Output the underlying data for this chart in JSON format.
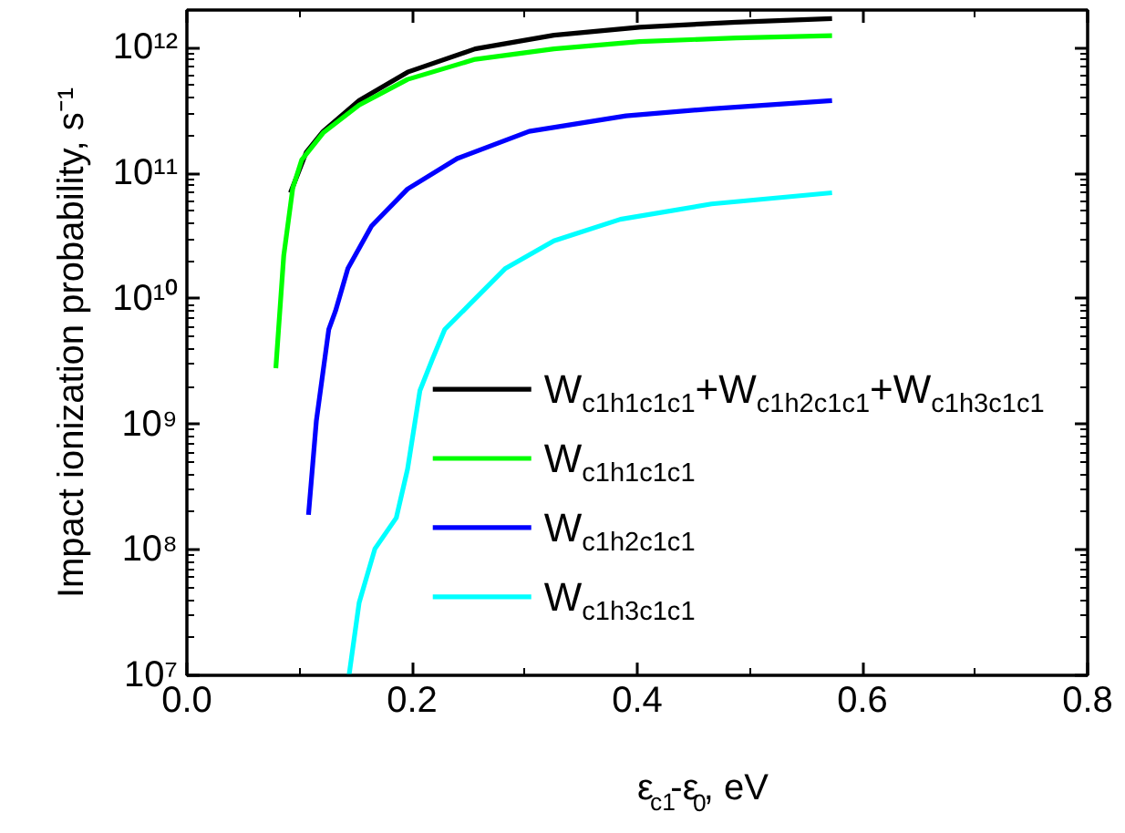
{
  "chart_data": {
    "type": "line",
    "xlabel": "ε$_{c1}$-ε$_{0}$, eV",
    "ylabel": "Impact ionization probability, s⁻¹",
    "log": "y",
    "grid": false,
    "legend": "bottom right",
    "line_style": "solid",
    "xlim": [
      0,
      0.8
    ],
    "xticks": [
      {
        "value": 0,
        "label": "0.0"
      },
      0.2,
      0.4,
      0.6,
      0.8
    ],
    "ylim": [
      10000000.0,
      2000000000000.0
    ],
    "yticks": [
      {
        "value": 10000000.0,
        "label": "10⁷"
      },
      {
        "value": 100000000.0,
        "label": "10⁸"
      },
      {
        "value": 1000000000.0,
        "label": "10⁹"
      },
      {
        "value": 10000000000.0,
        "label": "10¹⁰"
      },
      {
        "value": 100000000000.0,
        "label": "10¹¹"
      },
      {
        "value": 1000000000000.0,
        "label": "10¹²"
      }
    ],
    "series": [
      {
        "name": "W$_{c1h1c1c1}$+W$_{c1h2c1c1}$+W$_{c1h3c1c1}$",
        "color": "#000000",
        "x": [
          0.092,
          0.106,
          0.121,
          0.153,
          0.196,
          0.256,
          0.326,
          0.402,
          0.488,
          0.573
        ],
        "values": [
          70000000000.0,
          147000000000.0,
          216000000000.0,
          380000000000.0,
          640000000000.0,
          980000000000.0,
          1260000000000.0,
          1460000000000.0,
          1600000000000.0,
          1710000000000.0
        ]
      },
      {
        "name": "W$_{c1h1c1c1}$",
        "color": "#00ff00",
        "x": [
          0.079,
          0.086,
          0.094,
          0.102,
          0.121,
          0.153,
          0.196,
          0.256,
          0.326,
          0.402,
          0.488,
          0.573
        ],
        "values": [
          2800000000.0,
          22000000000.0,
          76000000000.0,
          128000000000.0,
          210000000000.0,
          350000000000.0,
          560000000000.0,
          810000000000.0,
          980000000000.0,
          1120000000000.0,
          1200000000000.0,
          1250000000000.0
        ]
      },
      {
        "name": "W$_{c1h2c1c1}$",
        "color": "#0000ff",
        "x": [
          0.108,
          0.115,
          0.126,
          0.132,
          0.143,
          0.164,
          0.196,
          0.24,
          0.304,
          0.39,
          0.466,
          0.573
        ],
        "values": [
          190000000.0,
          1070000000.0,
          5700000000.0,
          8000000000.0,
          17500000000.0,
          38000000000.0,
          75000000000.0,
          131000000000.0,
          216000000000.0,
          287000000000.0,
          327000000000.0,
          380000000000.0
        ]
      },
      {
        "name": "W$_{c1h3c1c1}$",
        "color": "#00ffff",
        "x": [
          0.144,
          0.153,
          0.167,
          0.186,
          0.196,
          0.207,
          0.218,
          0.229,
          0.251,
          0.283,
          0.326,
          0.385,
          0.466,
          0.573
        ],
        "values": [
          10000000.0,
          38000000.0,
          102000000.0,
          180000000.0,
          440000000.0,
          1860000000.0,
          3300000000.0,
          5700000000.0,
          9000000000.0,
          17500000000.0,
          29000000000.0,
          43000000000.0,
          57000000000.0,
          70000000000.0
        ]
      }
    ]
  }
}
